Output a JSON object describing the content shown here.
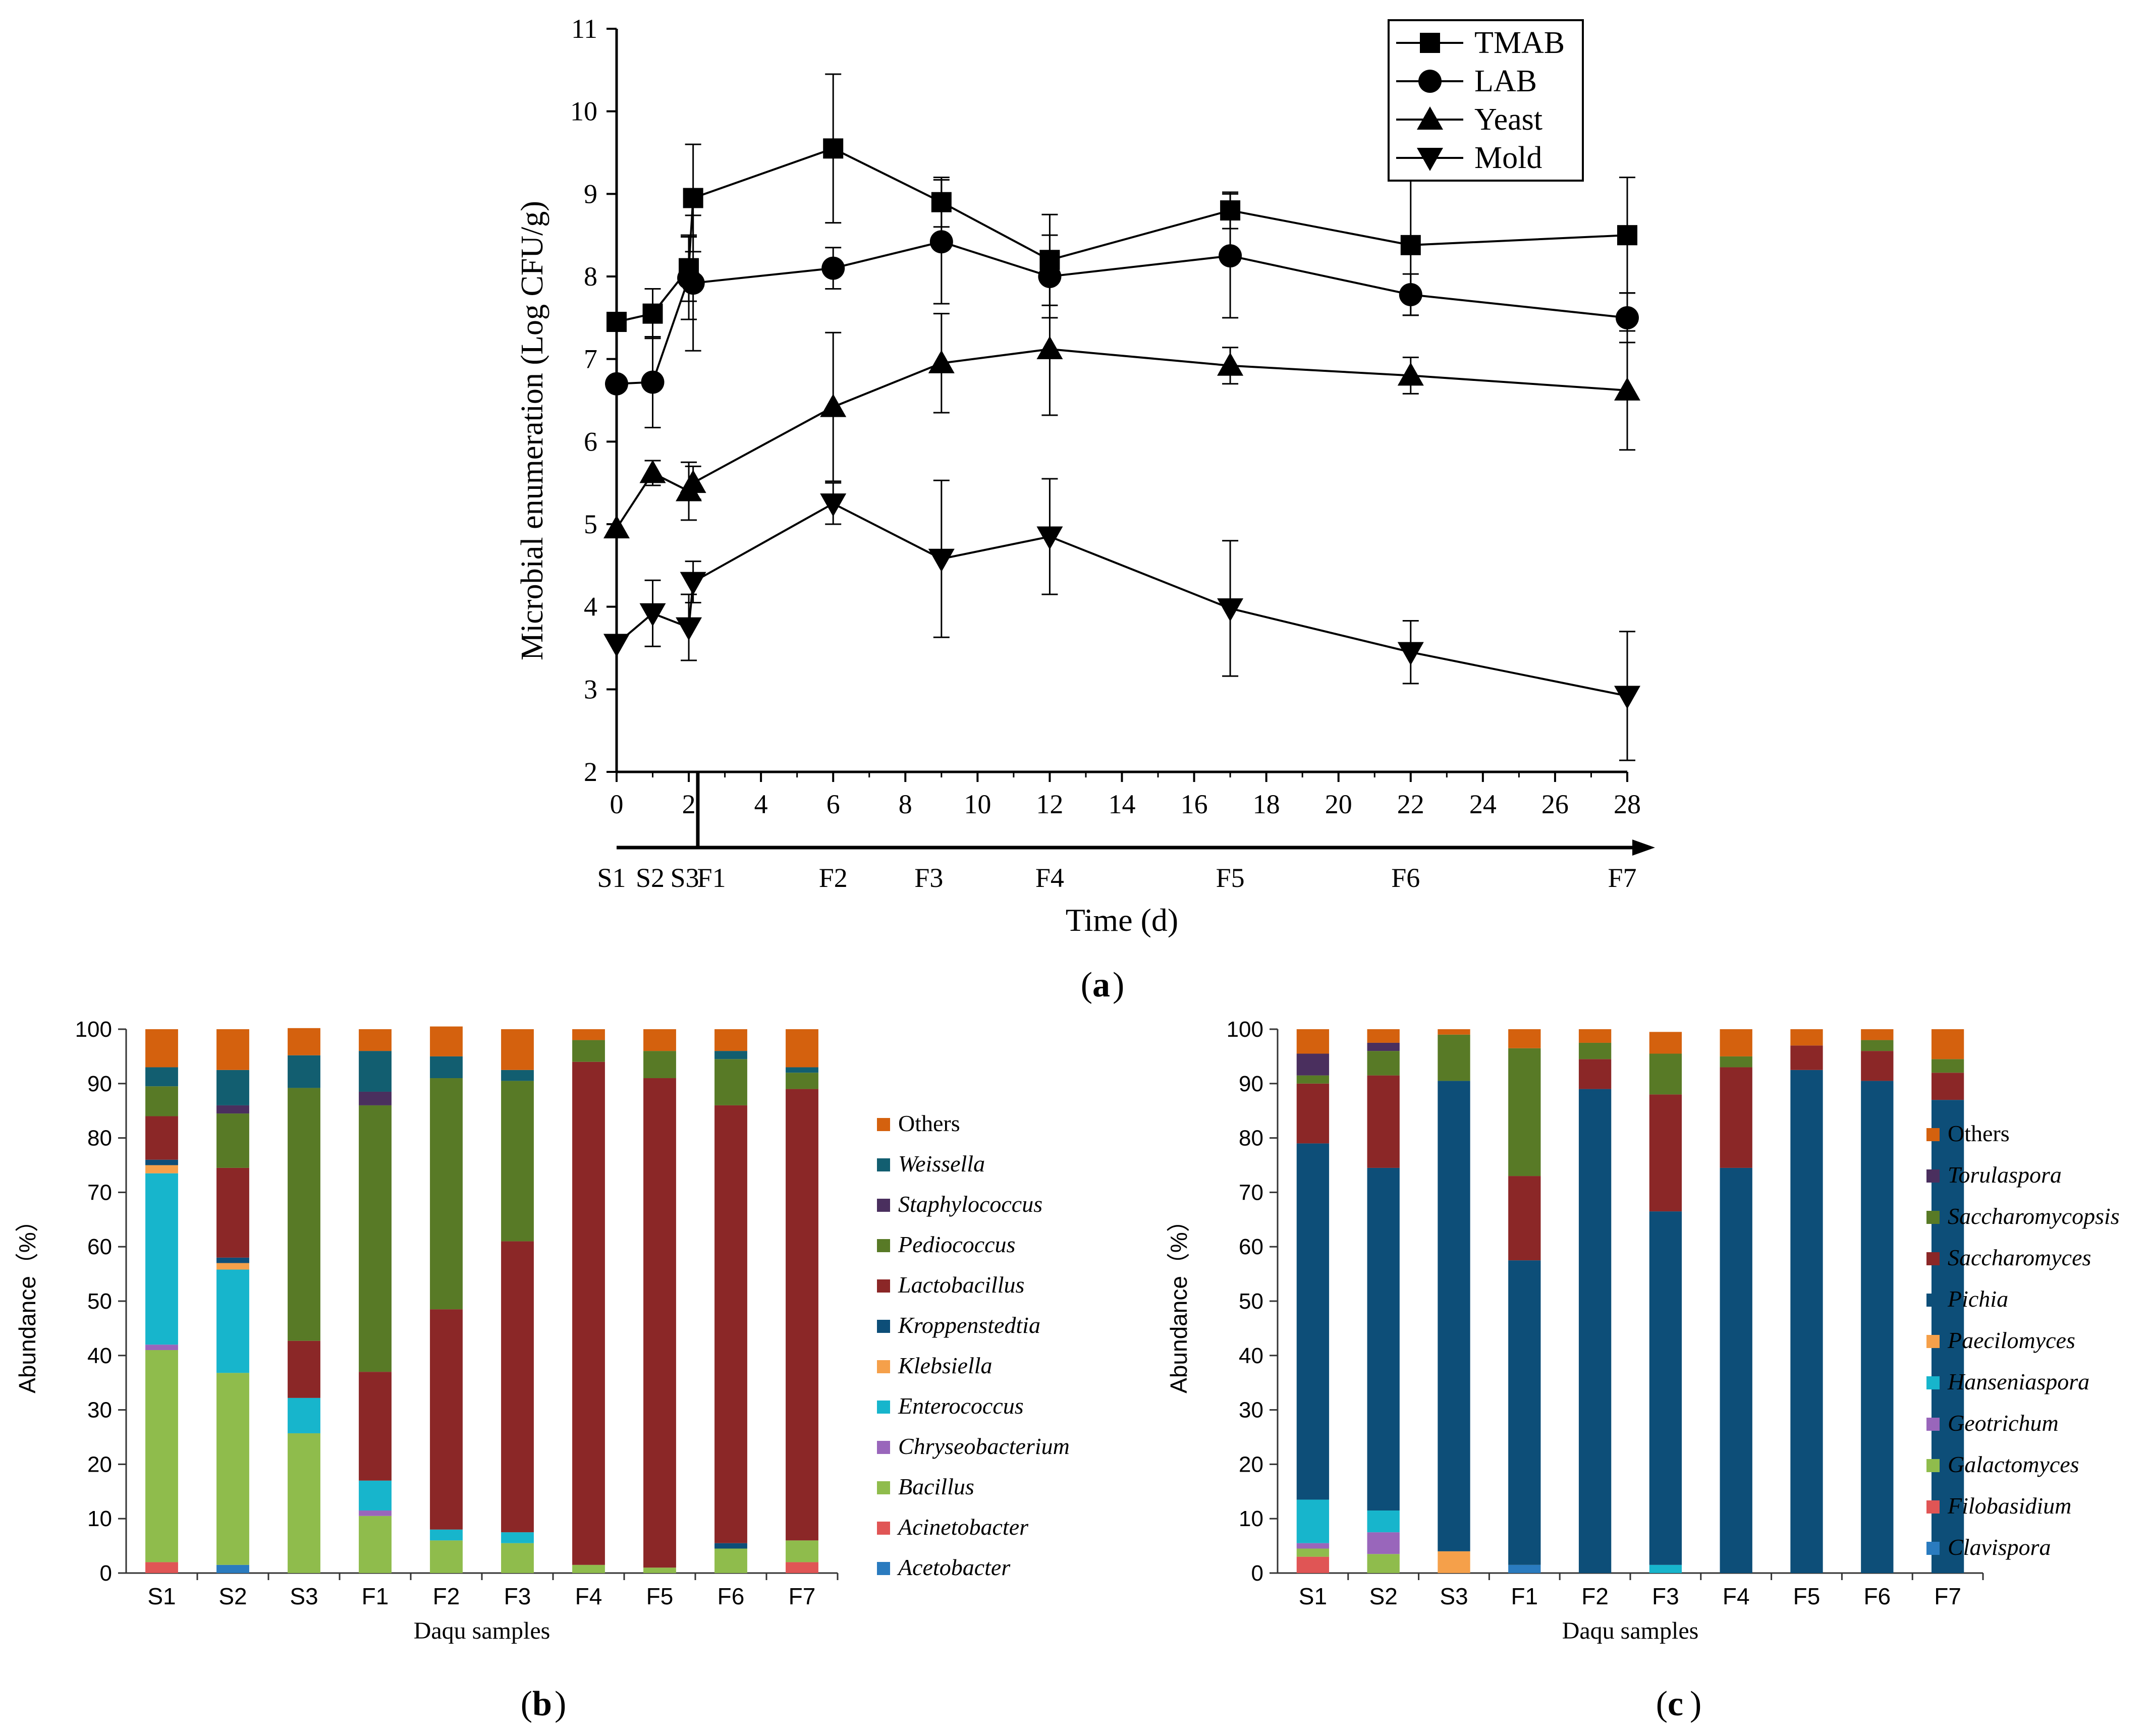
{
  "chart_data": [
    {
      "panel": "a",
      "panel_label": "a",
      "type": "line",
      "xlabel": "Time (d)",
      "ylabel": "Microbial enumeration (Log CFU/g)",
      "xlim": [
        0,
        28
      ],
      "ylim": [
        2,
        11
      ],
      "x_ticks": [
        0,
        2,
        4,
        6,
        8,
        10,
        12,
        14,
        16,
        18,
        20,
        22,
        24,
        26,
        28
      ],
      "y_ticks": [
        2,
        3,
        4,
        5,
        6,
        7,
        8,
        9,
        10,
        11
      ],
      "x": [
        0,
        1,
        2,
        2,
        6,
        9,
        12,
        17,
        22,
        28
      ],
      "stages": [
        {
          "label": "S1",
          "x": 0
        },
        {
          "label": "S2",
          "x": 1
        },
        {
          "label": "S3",
          "x": 2
        },
        {
          "label": "F1",
          "x": 2
        },
        {
          "label": "F2",
          "x": 6
        },
        {
          "label": "F3",
          "x": 9
        },
        {
          "label": "F4",
          "x": 12
        },
        {
          "label": "F5",
          "x": 17
        },
        {
          "label": "F6",
          "x": 22
        },
        {
          "label": "F7",
          "x": 28
        }
      ],
      "legend_position": "top-right",
      "series": [
        {
          "name": "TMAB",
          "marker": "square",
          "values": [
            7.45,
            7.55,
            8.1,
            8.95,
            9.55,
            8.9,
            8.2,
            8.8,
            8.38,
            8.5
          ],
          "errors": [
            0.0,
            0.3,
            0.4,
            0.65,
            0.9,
            0.3,
            0.55,
            0.22,
            0.85,
            0.7
          ]
        },
        {
          "name": "LAB",
          "marker": "circle",
          "values": [
            6.7,
            6.72,
            7.98,
            7.92,
            8.1,
            8.42,
            8.0,
            8.25,
            7.78,
            7.5
          ],
          "errors": [
            0.0,
            0.55,
            0.5,
            0.82,
            0.25,
            0.75,
            0.5,
            0.75,
            0.25,
            0.3
          ]
        },
        {
          "name": "Yeast",
          "marker": "triangle-up",
          "values": [
            4.95,
            5.62,
            5.4,
            5.5,
            6.42,
            6.95,
            7.12,
            6.92,
            6.8,
            6.62
          ],
          "errors": [
            0.0,
            0.15,
            0.35,
            0.2,
            0.9,
            0.6,
            0.8,
            0.22,
            0.22,
            0.72
          ]
        },
        {
          "name": "Mold",
          "marker": "triangle-down",
          "values": [
            3.55,
            3.92,
            3.75,
            4.3,
            5.25,
            4.58,
            4.85,
            3.98,
            3.45,
            2.92
          ],
          "errors": [
            0.0,
            0.4,
            0.4,
            0.25,
            0.25,
            0.95,
            0.7,
            0.82,
            0.38,
            0.78
          ]
        }
      ]
    },
    {
      "panel": "b",
      "panel_label": "b",
      "type": "bar",
      "stacked": true,
      "xlabel": "Daqu samples",
      "ylabel": "Abundance（%）",
      "ylim": [
        0,
        100
      ],
      "y_ticks": [
        0,
        10,
        20,
        30,
        40,
        50,
        60,
        70,
        80,
        90,
        100
      ],
      "categories": [
        "S1",
        "S2",
        "S3",
        "F1",
        "F2",
        "F3",
        "F4",
        "F5",
        "F6",
        "F7"
      ],
      "series": [
        {
          "name": "Acetobacter",
          "color": "#2a7bbf",
          "values": [
            0,
            1.5,
            0,
            0,
            0,
            0,
            0,
            0,
            0,
            0
          ]
        },
        {
          "name": "Acinetobacter",
          "color": "#e05555",
          "values": [
            2,
            0,
            0,
            0,
            0,
            0,
            0,
            0,
            0,
            2
          ]
        },
        {
          "name": "Bacillus",
          "color": "#8fbc4c",
          "values": [
            39,
            35.3,
            25.7,
            10.5,
            6,
            5.5,
            1.5,
            1,
            4.5,
            4
          ]
        },
        {
          "name": "Chryseobacterium",
          "color": "#9966bb",
          "values": [
            1,
            0,
            0,
            1,
            0,
            0,
            0,
            0,
            0,
            0
          ]
        },
        {
          "name": "Enterococcus",
          "color": "#17b5cc",
          "values": [
            31.5,
            19,
            6.5,
            5.5,
            2,
            2,
            0,
            0,
            0,
            0
          ]
        },
        {
          "name": "Klebsiella",
          "color": "#f5a04a",
          "values": [
            1.5,
            1.2,
            0,
            0,
            0,
            0,
            0,
            0,
            0,
            0
          ]
        },
        {
          "name": "Kroppenstedtia",
          "color": "#0d4e78",
          "values": [
            1,
            1,
            0,
            0,
            0,
            0,
            0,
            0,
            1,
            0
          ]
        },
        {
          "name": "Lactobacillus",
          "color": "#8b2727",
          "values": [
            8,
            16.5,
            10.5,
            20,
            40.5,
            53.5,
            92.5,
            90,
            80.5,
            83
          ]
        },
        {
          "name": "Pediococcus",
          "color": "#587a26",
          "values": [
            5.5,
            10,
            46.5,
            49,
            42.5,
            29.5,
            4,
            5,
            8.5,
            3
          ]
        },
        {
          "name": "Staphylococcus",
          "color": "#4a2f5e",
          "values": [
            0,
            1.5,
            0,
            2.5,
            0,
            0,
            0,
            0,
            0,
            0
          ]
        },
        {
          "name": "Weissella",
          "color": "#125e70",
          "values": [
            3.5,
            6.5,
            6,
            7.5,
            4,
            2,
            0,
            0,
            1.5,
            1
          ]
        },
        {
          "name": "Others",
          "color": "#d4610e",
          "values": [
            7,
            7.5,
            5,
            4,
            5.5,
            7.5,
            2,
            4,
            4,
            7
          ]
        }
      ]
    },
    {
      "panel": "c",
      "panel_label": "c",
      "type": "bar",
      "stacked": true,
      "xlabel": "Daqu samples",
      "ylabel": "Abundance（%）",
      "ylim": [
        0,
        100
      ],
      "y_ticks": [
        0,
        10,
        20,
        30,
        40,
        50,
        60,
        70,
        80,
        90,
        100
      ],
      "categories": [
        "S1",
        "S2",
        "S3",
        "F1",
        "F2",
        "F3",
        "F4",
        "F5",
        "F6",
        "F7"
      ],
      "series": [
        {
          "name": "Clavispora",
          "color": "#2a7bbf",
          "values": [
            0,
            0,
            0,
            1.5,
            0,
            0,
            0,
            0,
            0,
            0
          ]
        },
        {
          "name": "Filobasidium",
          "color": "#e05555",
          "values": [
            3,
            0,
            0,
            0,
            0,
            0,
            0,
            0,
            0,
            0
          ]
        },
        {
          "name": "Galactomyces",
          "color": "#8fbc4c",
          "values": [
            1.5,
            3.5,
            0,
            0,
            0,
            0,
            0,
            0,
            0,
            0
          ]
        },
        {
          "name": "Geotrichum",
          "color": "#9966bb",
          "values": [
            1,
            4,
            0,
            0,
            0,
            0,
            0,
            0,
            0,
            0
          ]
        },
        {
          "name": "Hanseniaspora",
          "color": "#17b5cc",
          "values": [
            8,
            4,
            0,
            0,
            0,
            1.5,
            0,
            0,
            0,
            0
          ]
        },
        {
          "name": "Paecilomyces",
          "color": "#f5a04a",
          "values": [
            0,
            0,
            4,
            0,
            0,
            0,
            0,
            0,
            0,
            0
          ]
        },
        {
          "name": "Pichia",
          "color": "#0d4e78",
          "values": [
            65.5,
            63,
            86.5,
            56,
            89,
            65,
            74.5,
            92.5,
            90.5,
            87
          ]
        },
        {
          "name": "Saccharomyces",
          "color": "#8b2727",
          "values": [
            11,
            17,
            0,
            15.5,
            5.5,
            21.5,
            18.5,
            4.5,
            5.5,
            5
          ]
        },
        {
          "name": "Saccharomycopsis",
          "color": "#587a26",
          "values": [
            1.5,
            4.5,
            8.5,
            23.5,
            3,
            7.5,
            2,
            0,
            2,
            2.5
          ]
        },
        {
          "name": "Torulaspora",
          "color": "#4a2f5e",
          "values": [
            4,
            1.5,
            0,
            0,
            0,
            0,
            0,
            0,
            0,
            0
          ]
        },
        {
          "name": "Others",
          "color": "#d4610e",
          "values": [
            4.5,
            2.5,
            1,
            3.5,
            2.5,
            4,
            5,
            3,
            2,
            5.5
          ]
        }
      ]
    }
  ]
}
